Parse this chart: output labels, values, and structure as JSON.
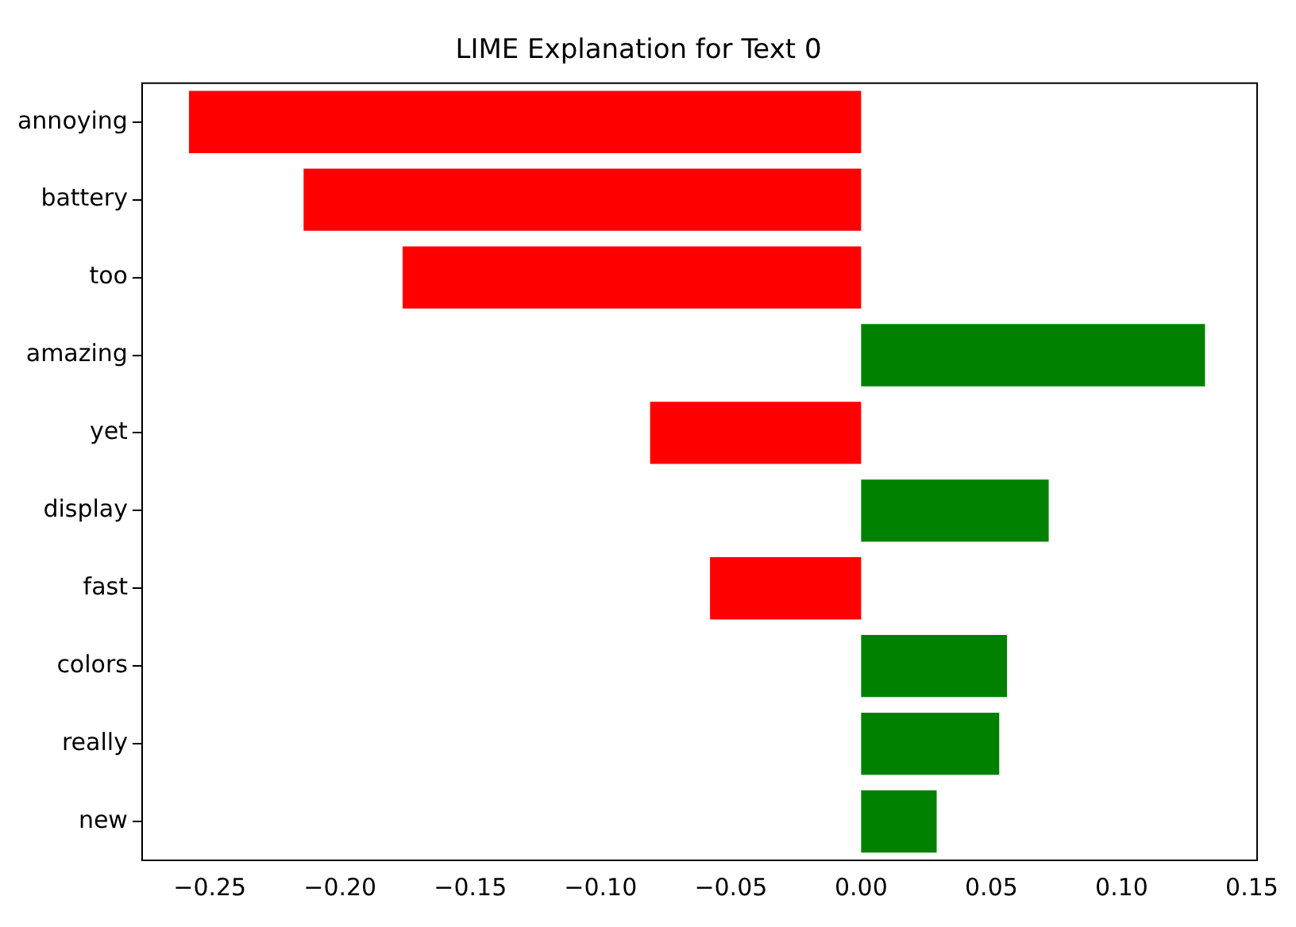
{
  "chart_data": {
    "type": "bar",
    "orientation": "horizontal",
    "title": "LIME Explanation for Text 0",
    "categories": [
      "annoying",
      "battery",
      "too",
      "amazing",
      "yet",
      "display",
      "fast",
      "colors",
      "really",
      "new"
    ],
    "values": [
      -0.258,
      -0.214,
      -0.176,
      0.132,
      -0.081,
      0.072,
      -0.058,
      0.056,
      0.053,
      0.029
    ],
    "colors": [
      "#ff0000",
      "#ff0000",
      "#ff0000",
      "#008000",
      "#ff0000",
      "#008000",
      "#ff0000",
      "#008000",
      "#008000",
      "#008000"
    ],
    "xlim": [
      -0.276,
      0.152
    ],
    "xticks": [
      {
        "value": -0.25,
        "label": "−0.25"
      },
      {
        "value": -0.2,
        "label": "−0.20"
      },
      {
        "value": -0.15,
        "label": "−0.15"
      },
      {
        "value": -0.1,
        "label": "−0.10"
      },
      {
        "value": -0.05,
        "label": "−0.05"
      },
      {
        "value": 0,
        "label": "0.00"
      },
      {
        "value": 0.05,
        "label": "0.05"
      },
      {
        "value": 0.1,
        "label": "0.10"
      },
      {
        "value": 0.15,
        "label": "0.15"
      }
    ],
    "grid": false,
    "legend": false
  }
}
